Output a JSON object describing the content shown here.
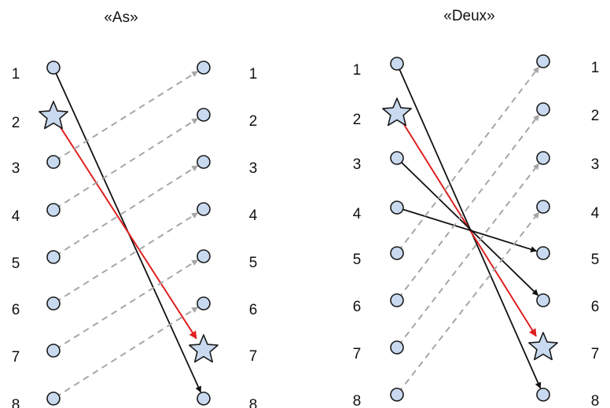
{
  "panels": [
    {
      "title": "«As»",
      "left_labels": [
        "1",
        "2",
        "3",
        "4",
        "5",
        "6",
        "7",
        "8"
      ],
      "right_labels": [
        "1",
        "2",
        "3",
        "4",
        "5",
        "6",
        "7",
        "8"
      ],
      "left_star": 2,
      "right_star": 7,
      "connections": [
        {
          "from": 1,
          "to": 8,
          "style": "solid-black"
        },
        {
          "from": 2,
          "to": 7,
          "style": "solid-red"
        },
        {
          "from": 3,
          "to": 1,
          "style": "dashed-gray"
        },
        {
          "from": 4,
          "to": 2,
          "style": "dashed-gray"
        },
        {
          "from": 5,
          "to": 3,
          "style": "dashed-gray"
        },
        {
          "from": 6,
          "to": 4,
          "style": "dashed-gray"
        },
        {
          "from": 7,
          "to": 5,
          "style": "dashed-gray"
        },
        {
          "from": 8,
          "to": 6,
          "style": "dashed-gray"
        }
      ]
    },
    {
      "title": "«Deux»",
      "left_labels": [
        "1",
        "2",
        "3",
        "4",
        "5",
        "6",
        "7",
        "8"
      ],
      "right_labels": [
        "1",
        "2",
        "3",
        "4",
        "5",
        "6",
        "7",
        "8"
      ],
      "left_star": 2,
      "right_star": 7,
      "connections": [
        {
          "from": 1,
          "to": 8,
          "style": "solid-black"
        },
        {
          "from": 2,
          "to": 7,
          "style": "solid-red"
        },
        {
          "from": 3,
          "to": 6,
          "style": "solid-black"
        },
        {
          "from": 4,
          "to": 5,
          "style": "solid-black"
        },
        {
          "from": 5,
          "to": 1,
          "style": "dashed-gray"
        },
        {
          "from": 6,
          "to": 2,
          "style": "dashed-gray"
        },
        {
          "from": 7,
          "to": 3,
          "style": "dashed-gray"
        },
        {
          "from": 8,
          "to": 4,
          "style": "dashed-gray"
        }
      ]
    }
  ],
  "colors": {
    "node_fill": "#c9daf0",
    "node_stroke": "#1a1a1a",
    "dashed": "#a6a6a6",
    "red": "#e02020",
    "black": "#111111"
  }
}
